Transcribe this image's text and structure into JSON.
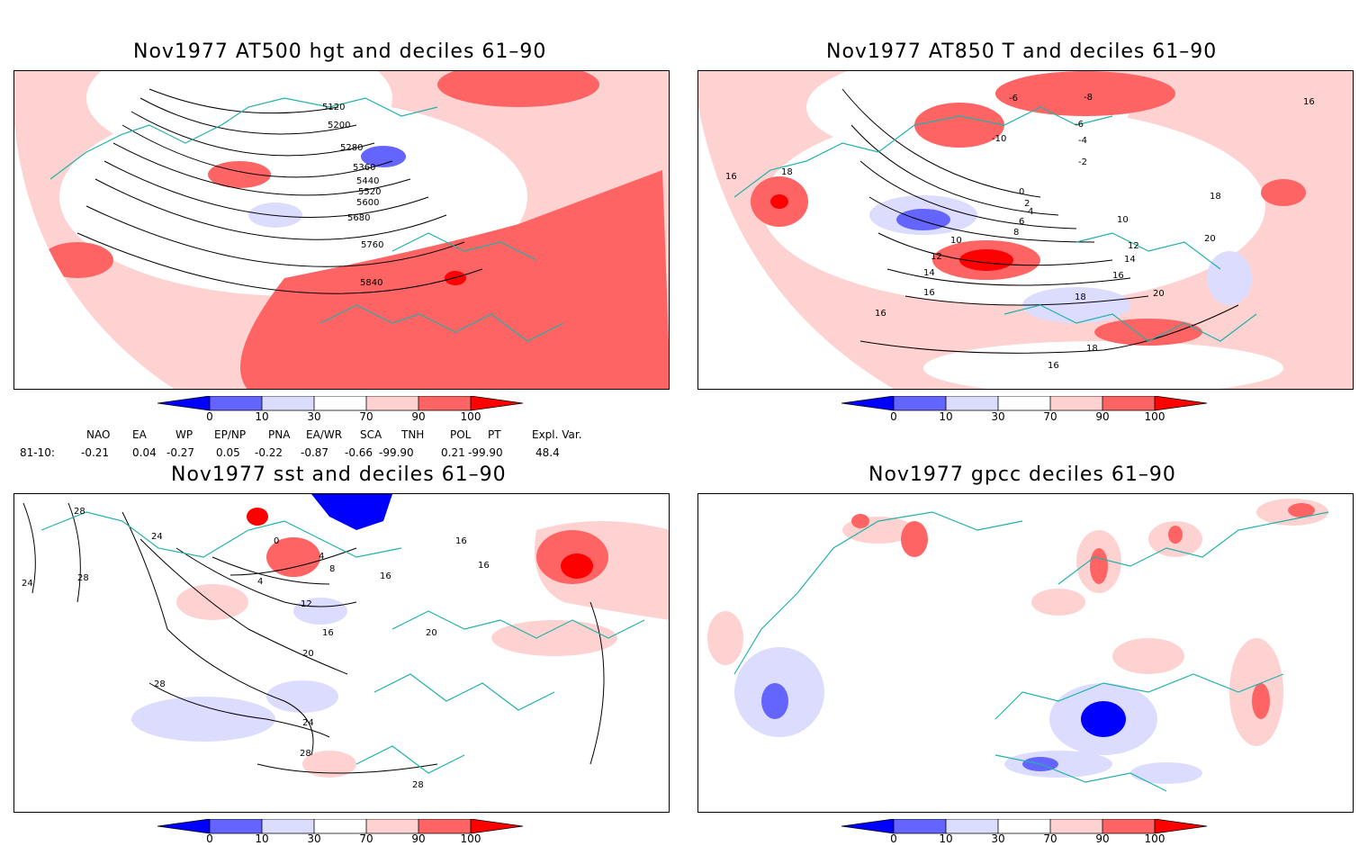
{
  "panels": [
    {
      "title": "Nov1977 AT500 hgt and deciles 61–90",
      "contour_labels": [
        "5120",
        "5200",
        "5280",
        "5360",
        "5440",
        "5520",
        "5600",
        "5680",
        "5760",
        "5840"
      ]
    },
    {
      "title": "Nov1977 AT850 T and deciles 61–90",
      "contour_labels": [
        "16",
        "18",
        "18",
        "16",
        "-8",
        "-6",
        "-4",
        "-2",
        "0",
        "2",
        "4",
        "6",
        "8",
        "10",
        "10",
        "12",
        "12",
        "14",
        "14",
        "16",
        "16",
        "18",
        "18",
        "20",
        "20",
        "16",
        "16",
        "-10",
        "-6"
      ]
    },
    {
      "title": "Nov1977 sst and deciles 61–90",
      "contour_labels": [
        "28",
        "24",
        "24",
        "28",
        "0",
        "4",
        "4",
        "8",
        "12",
        "16",
        "20",
        "20",
        "28",
        "24",
        "28",
        "28",
        "16",
        "16",
        "16"
      ]
    },
    {
      "title": "Nov1977 gpcc deciles 61–90",
      "contour_labels": []
    }
  ],
  "colorbar": {
    "labels": [
      "0",
      "10",
      "30",
      "70",
      "90",
      "100"
    ],
    "colors": [
      "#0000ff",
      "#6464ff",
      "#dcdcff",
      "#ffffff",
      "#ffd2d2",
      "#ff6464",
      "#ff0000"
    ]
  },
  "teleconnections": {
    "headers": [
      "NAO",
      "EA",
      "WP",
      "EP/NP",
      "PNA",
      "EA/WR",
      "SCA",
      "TNH",
      "POL",
      "PT",
      "Expl. Var."
    ],
    "row_label": "81-10:",
    "values": [
      "-0.21",
      "0.04",
      "-0.27",
      "0.05",
      "-0.22",
      "-0.87",
      "-0.66",
      "-99.90",
      "0.21",
      "-99.90",
      "48.4"
    ]
  }
}
